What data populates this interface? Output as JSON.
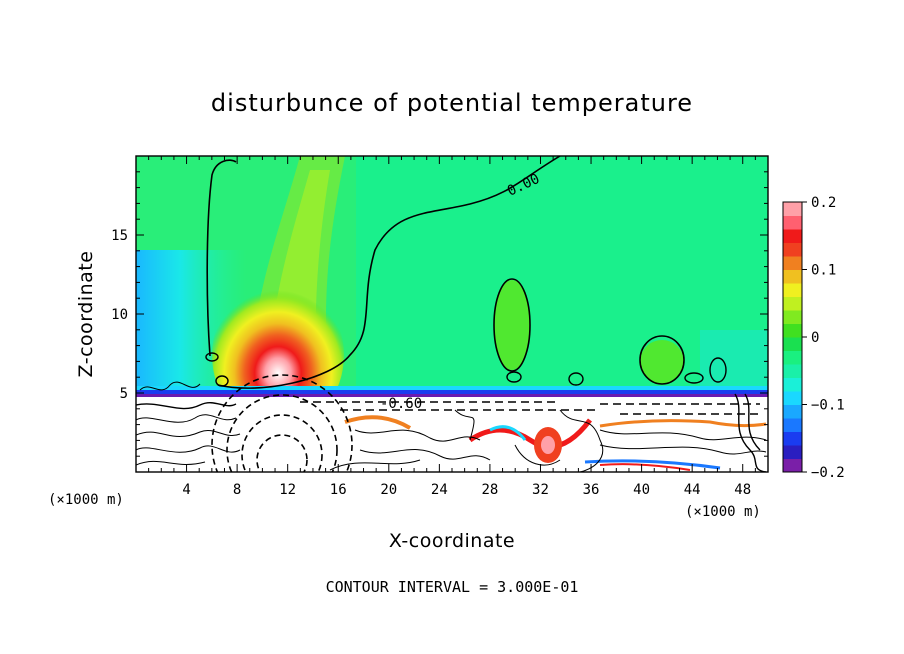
{
  "chart_data": {
    "type": "heatmap",
    "title": "disturbunce of potential temperature",
    "xlabel": "X-coordinate",
    "ylabel": "Z-coordinate",
    "x_unit": "(×1000 m)",
    "z_unit": "(×1000 m)",
    "xlim": [
      0,
      50
    ],
    "ylim": [
      0,
      20
    ],
    "x_ticks": [
      4,
      8,
      12,
      16,
      20,
      24,
      28,
      32,
      36,
      40,
      44,
      48
    ],
    "y_ticks": [
      5,
      10,
      15
    ],
    "colorbar": {
      "min": -0.2,
      "max": 0.2,
      "tick_values": [
        0.2,
        0.1,
        0,
        -0.1,
        -0.2
      ],
      "tick_labels": [
        "0.2",
        "0.1",
        "0",
        "−0.1",
        "−0.2"
      ],
      "colors": [
        "#7a1fa8",
        "#2a1ec0",
        "#1a3cf0",
        "#1a78ff",
        "#1aa8ff",
        "#1ad8ff",
        "#1af0d8",
        "#1af0a8",
        "#1af080",
        "#1ae050",
        "#40e020",
        "#80ea20",
        "#c0f020",
        "#f0f020",
        "#f0c020",
        "#f08020",
        "#f04020",
        "#f01a1a",
        "#ff6070",
        "#ffa0a8"
      ]
    },
    "contour_labels": [
      "0.00",
      "-0.60"
    ],
    "contour_interval_note": "CONTOUR INTERVAL = 3.000E-01"
  }
}
